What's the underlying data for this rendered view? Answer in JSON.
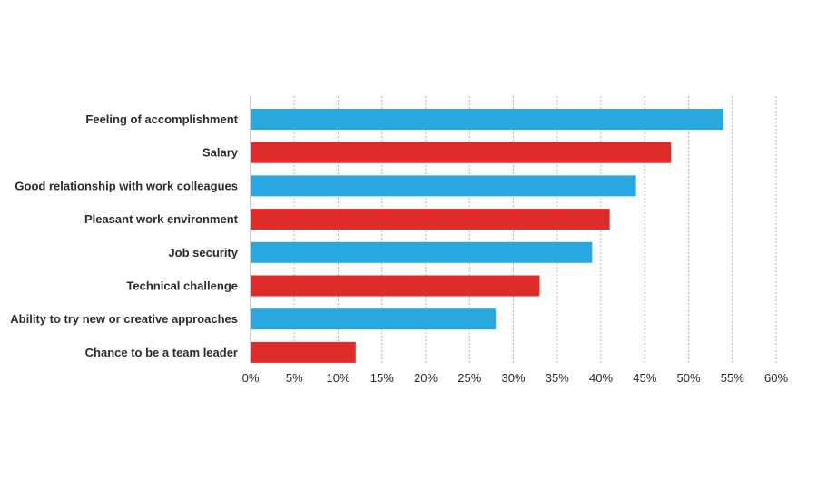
{
  "chart_data": {
    "type": "bar",
    "orientation": "horizontal",
    "categories": [
      "Feeling of accomplishment",
      "Salary",
      "Good relationship with work colleagues",
      "Pleasant work environment",
      "Job security",
      "Technical challenge",
      "Ability to try new or creative approaches",
      "Chance to be a team leader"
    ],
    "values": [
      54,
      48,
      44,
      41,
      39,
      33,
      28,
      12
    ],
    "bar_colors": [
      "#29a8e0",
      "#e02b2b",
      "#29a8e0",
      "#e02b2b",
      "#29a8e0",
      "#e02b2b",
      "#29a8e0",
      "#e02b2b"
    ],
    "xlim": [
      0,
      60
    ],
    "xticks": [
      0,
      5,
      10,
      15,
      20,
      25,
      30,
      35,
      40,
      45,
      50,
      55,
      60
    ],
    "xtick_labels": [
      "0%",
      "5%",
      "10%",
      "15%",
      "20%",
      "25%",
      "30%",
      "35%",
      "40%",
      "45%",
      "50%",
      "55%",
      "60%"
    ],
    "grid": true,
    "title": "",
    "xlabel": "",
    "ylabel": ""
  }
}
